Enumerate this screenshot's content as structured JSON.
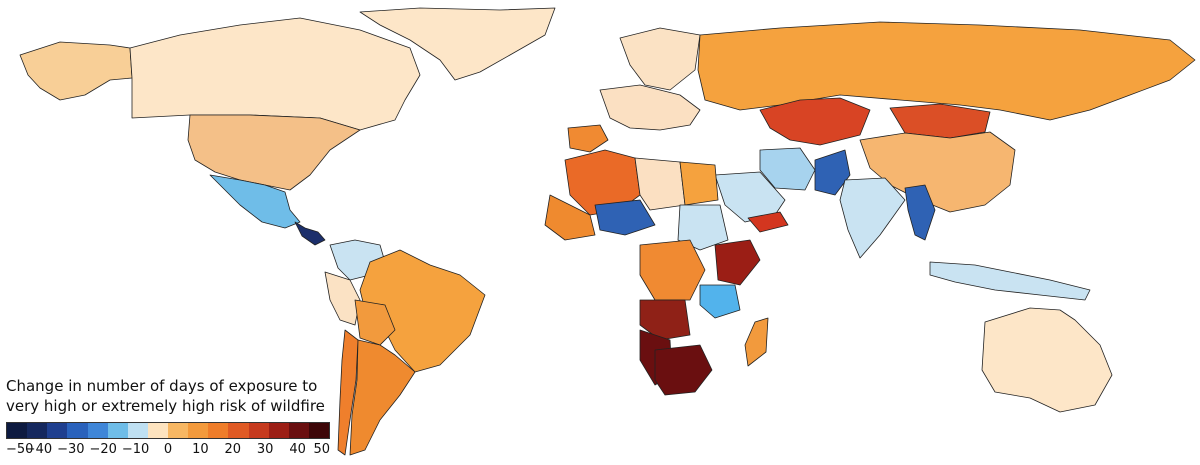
{
  "legend": {
    "title_line1": "Change in number of days of exposure to",
    "title_line2": "very high or extremely high risk of wildfire",
    "ticks": [
      "−50",
      "−40",
      "−30",
      "−20",
      "−10",
      "0",
      "10",
      "20",
      "30",
      "40",
      "50"
    ],
    "min": -50,
    "max": 50,
    "colors": [
      "#0d1a40",
      "#15285e",
      "#1f3f8f",
      "#2a62bc",
      "#3f86d8",
      "#6fbde8",
      "#bfe0f2",
      "#fde3bf",
      "#f7b763",
      "#f39a3c",
      "#ef7d2a",
      "#e05a24",
      "#c63a1e",
      "#9c1e15",
      "#6a0f10",
      "#3d0608"
    ]
  },
  "regions": [
    {
      "name": "greenland",
      "value": 2,
      "color": "#fde6c8"
    },
    {
      "name": "canada",
      "value": 2,
      "color": "#fde6c8"
    },
    {
      "name": "alaska",
      "value": 6,
      "color": "#f8cf97"
    },
    {
      "name": "usa",
      "value": 7,
      "color": "#f4c088"
    },
    {
      "name": "mexico",
      "value": -8,
      "color": "#6fbde8"
    },
    {
      "name": "central-america",
      "value": -45,
      "color": "#1c2f6b"
    },
    {
      "name": "brazil",
      "value": 13,
      "color": "#f5a23e"
    },
    {
      "name": "colombia",
      "value": -2,
      "color": "#c9e3f2"
    },
    {
      "name": "peru",
      "value": 2,
      "color": "#fbe2c4"
    },
    {
      "name": "bolivia",
      "value": 13,
      "color": "#f29a3d"
    },
    {
      "name": "argentina",
      "value": 15,
      "color": "#ef8a2f"
    },
    {
      "name": "chile",
      "value": 16,
      "color": "#ef7f2c"
    },
    {
      "name": "russia",
      "value": 13,
      "color": "#f5a23e"
    },
    {
      "name": "kazakhstan",
      "value": 30,
      "color": "#d84424"
    },
    {
      "name": "mongolia",
      "value": 28,
      "color": "#db4f26"
    },
    {
      "name": "china",
      "value": 8,
      "color": "#f6b670"
    },
    {
      "name": "india",
      "value": -3,
      "color": "#c9e3f2"
    },
    {
      "name": "pakistan",
      "value": -25,
      "color": "#2f62b4"
    },
    {
      "name": "iran",
      "value": -6,
      "color": "#a7d3ee"
    },
    {
      "name": "saudi-arabia",
      "value": -2,
      "color": "#c9e3f2"
    },
    {
      "name": "yemen",
      "value": 30,
      "color": "#d3361f"
    },
    {
      "name": "algeria",
      "value": 20,
      "color": "#ea6a27"
    },
    {
      "name": "libya",
      "value": 3,
      "color": "#fbe0c2"
    },
    {
      "name": "egypt",
      "value": 12,
      "color": "#f5a23e"
    },
    {
      "name": "mali",
      "value": 16,
      "color": "#ef8a2f"
    },
    {
      "name": "niger",
      "value": -25,
      "color": "#2f62b4"
    },
    {
      "name": "sudan",
      "value": -3,
      "color": "#c9e3f2"
    },
    {
      "name": "dr-congo",
      "value": 15,
      "color": "#f08a32"
    },
    {
      "name": "angola",
      "value": 42,
      "color": "#8f2117"
    },
    {
      "name": "namibia",
      "value": 48,
      "color": "#6a0f10"
    },
    {
      "name": "south-africa",
      "value": 48,
      "color": "#6a0f10"
    },
    {
      "name": "kenya",
      "value": 38,
      "color": "#9b1e15"
    },
    {
      "name": "tanzania",
      "value": -10,
      "color": "#52b3ec"
    },
    {
      "name": "madagascar",
      "value": 14,
      "color": "#f29a3d"
    },
    {
      "name": "australia",
      "value": 2,
      "color": "#fde6c8"
    },
    {
      "name": "indonesia",
      "value": -3,
      "color": "#c9e3f2"
    },
    {
      "name": "myanmar",
      "value": -25,
      "color": "#2f62b4"
    },
    {
      "name": "europe-west",
      "value": 3,
      "color": "#fbe0c2"
    },
    {
      "name": "scandinavia",
      "value": 3,
      "color": "#fbe2c4"
    },
    {
      "name": "iberia",
      "value": 15,
      "color": "#f08a32"
    }
  ]
}
